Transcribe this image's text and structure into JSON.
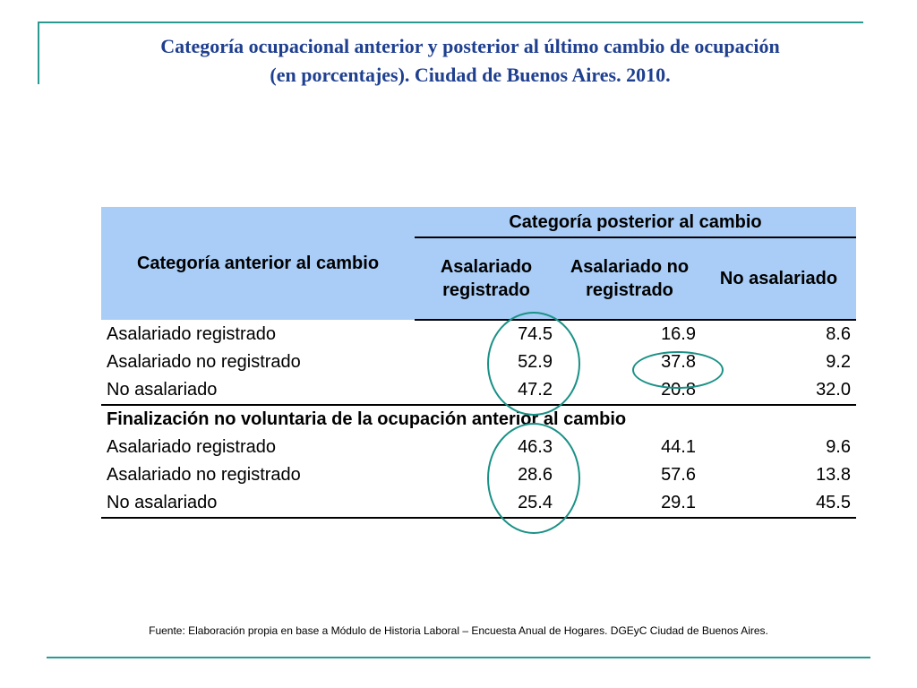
{
  "title": {
    "line1": "Categoría ocupacional anterior y posterior al último cambio de ocupación",
    "line2": "(en porcentajes). Ciudad de Buenos Aires. 2010."
  },
  "table": {
    "header_anterior": "Categoría anterior al cambio",
    "header_posterior": "Categoría posterior al cambio",
    "columns": [
      "Asalariado registrado",
      "Asalariado no registrado",
      "No asalariado"
    ],
    "rows_group1": [
      {
        "label": "Asalariado registrado",
        "values": [
          "74.5",
          "16.9",
          "8.6"
        ]
      },
      {
        "label": "Asalariado no registrado",
        "values": [
          "52.9",
          "37.8",
          "9.2"
        ]
      },
      {
        "label": "No asalariado",
        "values": [
          "47.2",
          "20.8",
          "32.0"
        ]
      }
    ],
    "section_label": "Finalización no voluntaria de la ocupación anterior al cambio",
    "rows_group2": [
      {
        "label": "Asalariado registrado",
        "values": [
          "46.3",
          "44.1",
          "9.6"
        ]
      },
      {
        "label": "Asalariado no registrado",
        "values": [
          "28.6",
          "57.6",
          "13.8"
        ]
      },
      {
        "label": "No asalariado",
        "values": [
          "25.4",
          "29.1",
          "45.5"
        ]
      }
    ]
  },
  "source": "Fuente: Elaboración propia en base a Módulo de Historia Laboral – Encuesta Anual de Hogares. DGEyC Ciudad de Buenos Aires.",
  "colors": {
    "title": "#1f3f8f",
    "header_background": "#a9cdf7",
    "accent": "#2a9a90",
    "highlight_ellipse": "#1a9186"
  }
}
